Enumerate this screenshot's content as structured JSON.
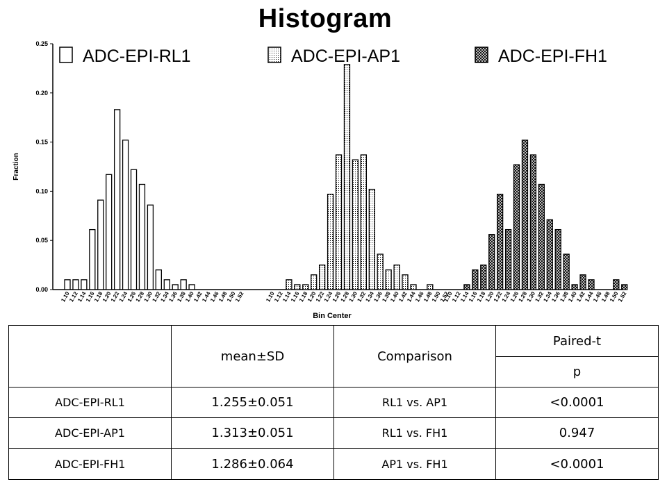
{
  "title": "Histogram",
  "chart_data": {
    "type": "bar",
    "ylabel": "Fraction",
    "xlabel": "Bin Center",
    "ylim": [
      0,
      0.25
    ],
    "yticks": [
      "0.00",
      "0.05",
      "0.10",
      "0.15",
      "0.20",
      "0.25"
    ],
    "ytick_values": [
      0,
      0.05,
      0.1,
      0.15,
      0.2,
      0.25
    ],
    "categories": [
      "1.10",
      "1.12",
      "1.14",
      "1.16",
      "1.18",
      "1.20",
      "1.22",
      "1.24",
      "1.26",
      "1.28",
      "1.30",
      "1.32",
      "1.34",
      "1.36",
      "1.38",
      "1.40",
      "1.42",
      "1.44",
      "1.46",
      "1.48",
      "1.50",
      "1.52"
    ],
    "legend_position": "top",
    "series": [
      {
        "name": "ADC-EPI-RL1",
        "pattern": "white",
        "values": [
          0.01,
          0.01,
          0.01,
          0.061,
          0.091,
          0.117,
          0.183,
          0.152,
          0.122,
          0.107,
          0.086,
          0.02,
          0.01,
          0.005,
          0.01,
          0.005,
          0,
          0,
          0,
          0,
          0,
          0
        ]
      },
      {
        "name": "ADC-EPI-AP1",
        "pattern": "dotted",
        "values": [
          0,
          0,
          0.01,
          0.005,
          0.005,
          0.015,
          0.025,
          0.097,
          0.137,
          0.229,
          0.132,
          0.137,
          0.102,
          0.036,
          0.02,
          0.025,
          0.015,
          0.005,
          0,
          0.005,
          0,
          0
        ]
      },
      {
        "name": "ADC-EPI-FH1",
        "pattern": "crosshatch",
        "values": [
          0,
          0,
          0.005,
          0.02,
          0.025,
          0.056,
          0.097,
          0.061,
          0.127,
          0.152,
          0.137,
          0.107,
          0.071,
          0.061,
          0.036,
          0.005,
          0.015,
          0.01,
          0,
          0,
          0.01,
          0.005
        ]
      }
    ]
  },
  "table": {
    "header": {
      "stat": "mean±SD",
      "comparison": "Comparison",
      "test": "Paired-t",
      "p": "p"
    },
    "rows": [
      {
        "name": "ADC-EPI-RL1",
        "mean_sd": "1.255±0.051",
        "comparison": "RL1 vs. AP1",
        "p": "<0.0001"
      },
      {
        "name": "ADC-EPI-AP1",
        "mean_sd": "1.313±0.051",
        "comparison": "RL1 vs. FH1",
        "p": "0.947"
      },
      {
        "name": "ADC-EPI-FH1",
        "mean_sd": "1.286±0.064",
        "comparison": "AP1 vs. FH1",
        "p": "<0.0001"
      }
    ]
  }
}
